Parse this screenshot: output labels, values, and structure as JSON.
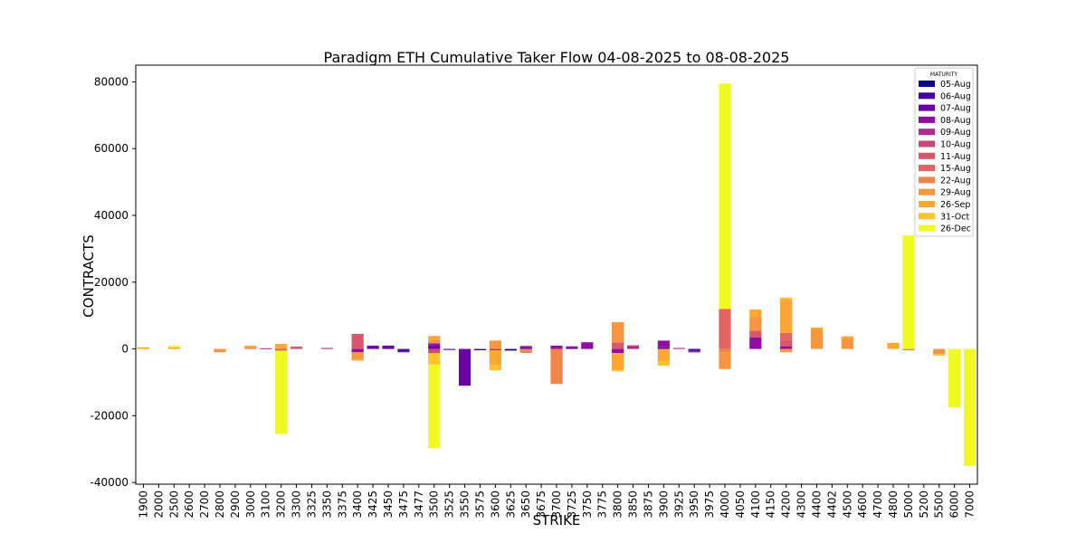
{
  "chart_data": {
    "type": "bar",
    "stacked": true,
    "title": "Paradigm ETH Cumulative Taker Flow 04-08-2025 to 08-08-2025",
    "xlabel": "STRIKE",
    "ylabel": "CONTRACTS",
    "ylim": [
      -40500,
      85000
    ],
    "yticks": [
      -40000,
      -20000,
      0,
      20000,
      40000,
      60000,
      80000
    ],
    "legend_title": "MATURITY",
    "legend_position": "top-right",
    "categories": [
      "1900",
      "2000",
      "2500",
      "2600",
      "2700",
      "2800",
      "2900",
      "3000",
      "3100",
      "3200",
      "3300",
      "3325",
      "3350",
      "3375",
      "3400",
      "3425",
      "3450",
      "3475",
      "3477",
      "3500",
      "3525",
      "3550",
      "3575",
      "3600",
      "3625",
      "3650",
      "3675",
      "3700",
      "3725",
      "3750",
      "3775",
      "3800",
      "3850",
      "3875",
      "3900",
      "3925",
      "3950",
      "3975",
      "4000",
      "4050",
      "4100",
      "4150",
      "4200",
      "4300",
      "4400",
      "4402",
      "4500",
      "4600",
      "4700",
      "4800",
      "5000",
      "5200",
      "5500",
      "6000",
      "7000"
    ],
    "series": [
      {
        "name": "05-Aug",
        "color": "#0d0887",
        "values": [
          0,
          0,
          0,
          0,
          0,
          0,
          0,
          0,
          0,
          0,
          0,
          0,
          0,
          0,
          0,
          0,
          0,
          -300,
          0,
          0,
          0,
          0,
          0,
          0,
          -200,
          0,
          0,
          0,
          0,
          0,
          0,
          0,
          0,
          0,
          0,
          0,
          -150,
          0,
          0,
          0,
          0,
          0,
          0,
          0,
          0,
          0,
          0,
          0,
          0,
          0,
          0,
          0,
          0,
          0,
          0
        ]
      },
      {
        "name": "06-Aug",
        "color": "#41049d",
        "values": [
          0,
          0,
          0,
          0,
          0,
          0,
          0,
          0,
          0,
          0,
          0,
          0,
          0,
          0,
          0,
          0,
          400,
          -400,
          0,
          0,
          -300,
          0,
          -400,
          0,
          -300,
          0,
          0,
          0,
          0,
          0,
          0,
          0,
          0,
          0,
          0,
          0,
          -300,
          0,
          0,
          0,
          0,
          0,
          0,
          0,
          0,
          0,
          0,
          0,
          0,
          0,
          0,
          0,
          0,
          0,
          0
        ]
      },
      {
        "name": "07-Aug",
        "color": "#6a00a8",
        "values": [
          0,
          0,
          0,
          0,
          0,
          0,
          0,
          0,
          0,
          0,
          0,
          0,
          0,
          0,
          0,
          700,
          600,
          -300,
          0,
          1000,
          0,
          -11000,
          0,
          0,
          0,
          500,
          0,
          0,
          500,
          0,
          0,
          0,
          0,
          0,
          500,
          0,
          -300,
          0,
          0,
          0,
          0,
          0,
          0,
          0,
          0,
          0,
          0,
          0,
          0,
          0,
          0,
          0,
          0,
          0,
          0
        ]
      },
      {
        "name": "08-Aug",
        "color": "#8f0da4",
        "values": [
          0,
          0,
          0,
          0,
          0,
          0,
          0,
          0,
          0,
          0,
          0,
          0,
          0,
          0,
          -1000,
          300,
          0,
          0,
          0,
          700,
          0,
          0,
          0,
          0,
          0,
          400,
          0,
          1000,
          300,
          2000,
          0,
          -1200,
          0,
          0,
          2000,
          0,
          -200,
          0,
          0,
          0,
          3500,
          0,
          800,
          0,
          0,
          0,
          0,
          0,
          0,
          0,
          0,
          0,
          0,
          0,
          0
        ]
      },
      {
        "name": "09-Aug",
        "color": "#b12a90",
        "values": [
          0,
          0,
          0,
          0,
          0,
          0,
          0,
          0,
          200,
          0,
          0,
          0,
          300,
          0,
          0,
          0,
          0,
          0,
          0,
          0,
          0,
          0,
          0,
          -400,
          0,
          0,
          0,
          0,
          0,
          0,
          0,
          0,
          700,
          0,
          0,
          300,
          0,
          0,
          0,
          0,
          0,
          0,
          0,
          0,
          0,
          0,
          0,
          0,
          0,
          0,
          0,
          0,
          0,
          0,
          0
        ]
      },
      {
        "name": "10-Aug",
        "color": "#cc4778",
        "values": [
          0,
          0,
          0,
          0,
          0,
          0,
          0,
          0,
          0,
          0,
          0,
          0,
          0,
          0,
          0,
          0,
          0,
          0,
          0,
          -1200,
          0,
          0,
          0,
          0,
          0,
          0,
          0,
          0,
          0,
          0,
          0,
          0,
          400,
          0,
          0,
          0,
          0,
          0,
          0,
          0,
          0,
          0,
          0,
          0,
          0,
          0,
          0,
          0,
          0,
          0,
          0,
          0,
          0,
          0,
          0
        ]
      },
      {
        "name": "11-Aug",
        "color": "#d8576b",
        "values": [
          0,
          0,
          0,
          0,
          0,
          0,
          0,
          0,
          0,
          -500,
          700,
          0,
          0,
          0,
          4500,
          0,
          0,
          0,
          0,
          0,
          0,
          0,
          0,
          0,
          0,
          0,
          0,
          0,
          0,
          0,
          0,
          2000,
          0,
          0,
          0,
          0,
          0,
          0,
          0,
          0,
          2000,
          0,
          2000,
          0,
          0,
          0,
          0,
          0,
          0,
          0,
          0,
          0,
          0,
          0,
          0
        ]
      },
      {
        "name": "15-Aug",
        "color": "#e16462",
        "values": [
          0,
          0,
          0,
          0,
          0,
          0,
          0,
          0,
          0,
          0,
          0,
          0,
          0,
          0,
          0,
          0,
          0,
          0,
          0,
          0,
          0,
          0,
          0,
          0,
          0,
          0,
          0,
          0,
          0,
          0,
          0,
          0,
          0,
          0,
          0,
          0,
          0,
          0,
          12000,
          0,
          0,
          0,
          2000,
          0,
          0,
          0,
          0,
          0,
          0,
          0,
          0,
          0,
          0,
          0,
          0
        ]
      },
      {
        "name": "22-Aug",
        "color": "#f2844b",
        "values": [
          0,
          0,
          0,
          0,
          0,
          0,
          0,
          500,
          0,
          0,
          0,
          0,
          0,
          0,
          0,
          0,
          0,
          0,
          0,
          0,
          0,
          0,
          0,
          0,
          0,
          -1200,
          0,
          -10500,
          0,
          0,
          0,
          0,
          0,
          0,
          0,
          0,
          0,
          0,
          -1000,
          0,
          0,
          0,
          0,
          0,
          0,
          0,
          0,
          0,
          0,
          0,
          -400,
          0,
          0,
          0,
          0
        ]
      },
      {
        "name": "29-Aug",
        "color": "#f89540",
        "values": [
          0,
          0,
          0,
          0,
          0,
          -1000,
          0,
          0,
          0,
          0,
          0,
          0,
          0,
          0,
          -2000,
          0,
          0,
          0,
          0,
          1000,
          0,
          0,
          0,
          2500,
          0,
          0,
          0,
          0,
          0,
          0,
          0,
          6000,
          0,
          0,
          0,
          0,
          0,
          0,
          -5000,
          0,
          4000,
          0,
          -1000,
          0,
          6000,
          0,
          3000,
          0,
          0,
          0,
          0,
          0,
          -1500,
          0,
          0
        ]
      },
      {
        "name": "26-Sep",
        "color": "#fca636",
        "values": [
          500,
          0,
          500,
          0,
          0,
          0,
          0,
          500,
          0,
          1500,
          0,
          0,
          0,
          0,
          -500,
          0,
          0,
          0,
          0,
          1200,
          0,
          0,
          0,
          -4500,
          0,
          0,
          0,
          0,
          0,
          0,
          0,
          -5000,
          0,
          0,
          -3500,
          0,
          0,
          0,
          0,
          0,
          2300,
          0,
          10000,
          0,
          400,
          0,
          800,
          0,
          0,
          1800,
          0,
          0,
          0,
          0,
          0
        ]
      },
      {
        "name": "31-Oct",
        "color": "#fdc328",
        "values": [
          0,
          0,
          0,
          0,
          0,
          0,
          0,
          0,
          0,
          0,
          0,
          0,
          0,
          0,
          0,
          0,
          0,
          0,
          0,
          -3500,
          0,
          0,
          0,
          -1500,
          0,
          0,
          0,
          0,
          0,
          0,
          0,
          -500,
          0,
          0,
          -1500,
          0,
          0,
          0,
          0,
          0,
          0,
          0,
          600,
          0,
          0,
          0,
          0,
          0,
          0,
          0,
          0,
          0,
          -500,
          0,
          0
        ]
      },
      {
        "name": "26-Dec",
        "color": "#f0f921",
        "values": [
          0,
          0,
          500,
          0,
          0,
          0,
          0,
          0,
          0,
          -25000,
          0,
          0,
          0,
          0,
          0,
          0,
          0,
          0,
          0,
          -25000,
          0,
          0,
          0,
          0,
          0,
          0,
          0,
          0,
          0,
          0,
          0,
          0,
          0,
          0,
          0,
          0,
          0,
          0,
          67500,
          0,
          0,
          0,
          0,
          0,
          0,
          0,
          0,
          0,
          0,
          0,
          34000,
          0,
          0,
          -17500,
          -35000
        ]
      }
    ]
  }
}
